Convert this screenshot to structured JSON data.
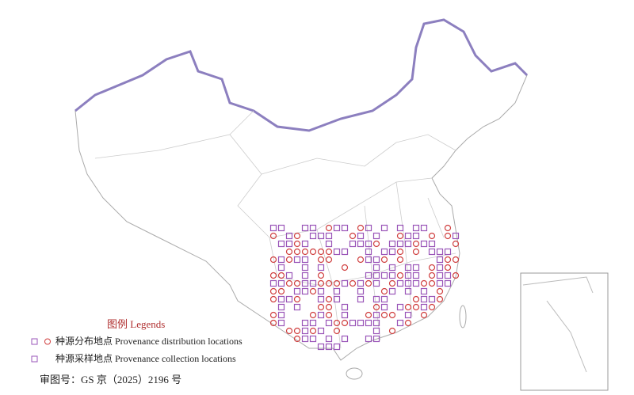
{
  "legend": {
    "title": "图例 Legends",
    "items": [
      {
        "label": "种源分布地点 Provenance distribution locations"
      },
      {
        "label": "种源采样地点 Provenance collection locations"
      }
    ]
  },
  "approval_number": "审图号：GS 京（2025）2196 号"
}
